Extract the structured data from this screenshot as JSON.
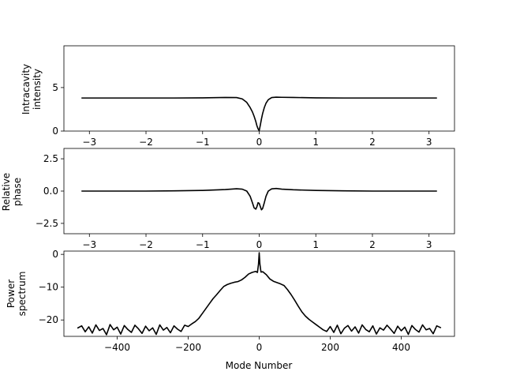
{
  "colors": {
    "line": "#000000",
    "background": "#ffffff"
  },
  "chart_data": [
    {
      "type": "line",
      "ylabel_lines": [
        "Intracavity",
        "intensity"
      ],
      "xlabel": "",
      "xlim": [
        -3.45,
        3.45
      ],
      "ylim": [
        0,
        9.8
      ],
      "xticks": [
        -3,
        -2,
        -1,
        0,
        1,
        2,
        3
      ],
      "xtick_labels": [
        "−3",
        "−2",
        "−1",
        "0",
        "1",
        "2",
        "3"
      ],
      "yticks": [
        0,
        5
      ],
      "ytick_labels": [
        "0",
        "5"
      ],
      "grid": false,
      "series": [
        {
          "x": [
            -3.14,
            -2.5,
            -2.0,
            -1.5,
            -1.0,
            -0.6,
            -0.4,
            -0.3,
            -0.22,
            -0.16,
            -0.12,
            -0.09,
            -0.06,
            -0.04,
            -0.02,
            0.0,
            0.02,
            0.04,
            0.06,
            0.09,
            0.12,
            0.16,
            0.22,
            0.3,
            0.4,
            0.6,
            1.0,
            1.5,
            2.0,
            2.5,
            3.14
          ],
          "y": [
            3.8,
            3.8,
            3.8,
            3.8,
            3.82,
            3.86,
            3.85,
            3.7,
            3.3,
            2.7,
            2.2,
            1.7,
            1.1,
            0.6,
            0.25,
            0.05,
            0.7,
            1.4,
            2.0,
            2.7,
            3.2,
            3.6,
            3.85,
            3.9,
            3.88,
            3.86,
            3.82,
            3.8,
            3.8,
            3.8,
            3.8
          ]
        }
      ]
    },
    {
      "type": "line",
      "ylabel_lines": [
        "Relative",
        "phase"
      ],
      "xlabel": "",
      "xlim": [
        -3.45,
        3.45
      ],
      "ylim": [
        -3.3,
        3.3
      ],
      "xticks": [
        -3,
        -2,
        -1,
        0,
        1,
        2,
        3
      ],
      "xtick_labels": [
        "−3",
        "−2",
        "−1",
        "0",
        "1",
        "2",
        "3"
      ],
      "yticks": [
        -2.5,
        0.0,
        2.5
      ],
      "ytick_labels": [
        "−2.5",
        "0.0",
        "2.5"
      ],
      "grid": false,
      "series": [
        {
          "x": [
            -3.14,
            -2.5,
            -2.0,
            -1.5,
            -1.0,
            -0.6,
            -0.4,
            -0.3,
            -0.22,
            -0.16,
            -0.12,
            -0.09,
            -0.06,
            -0.04,
            -0.02,
            0.0,
            0.02,
            0.04,
            0.06,
            0.09,
            0.12,
            0.16,
            0.22,
            0.3,
            0.4,
            0.6,
            1.0,
            1.5,
            2.0,
            2.5,
            3.14
          ],
          "y": [
            0.0,
            0.0,
            0.0,
            0.02,
            0.05,
            0.12,
            0.18,
            0.15,
            0.0,
            -0.4,
            -0.9,
            -1.3,
            -1.4,
            -1.2,
            -0.9,
            -0.95,
            -1.2,
            -1.45,
            -1.35,
            -0.9,
            -0.4,
            0.0,
            0.17,
            0.2,
            0.15,
            0.1,
            0.05,
            0.02,
            0.0,
            0.0,
            0.0
          ]
        }
      ]
    },
    {
      "type": "line",
      "ylabel_lines": [
        "Power",
        "spectrum"
      ],
      "xlabel": "Mode Number",
      "xlim": [
        -550,
        550
      ],
      "ylim": [
        -25,
        1
      ],
      "xticks": [
        -400,
        -200,
        0,
        200,
        400
      ],
      "xtick_labels": [
        "−400",
        "−200",
        "0",
        "200",
        "400"
      ],
      "yticks": [
        -20,
        -10,
        0
      ],
      "ytick_labels": [
        "−20",
        "−10",
        "0"
      ],
      "grid": false,
      "series": [
        {
          "x": [
            -512,
            -500,
            -490,
            -480,
            -470,
            -460,
            -450,
            -440,
            -430,
            -420,
            -410,
            -400,
            -390,
            -380,
            -370,
            -360,
            -350,
            -340,
            -330,
            -320,
            -310,
            -300,
            -290,
            -280,
            -270,
            -260,
            -250,
            -240,
            -230,
            -220,
            -210,
            -200,
            -190,
            -180,
            -170,
            -160,
            -150,
            -140,
            -130,
            -120,
            -110,
            -100,
            -90,
            -80,
            -70,
            -60,
            -50,
            -40,
            -30,
            -20,
            -10,
            -5,
            -2,
            0,
            2,
            5,
            10,
            20,
            30,
            40,
            50,
            60,
            70,
            80,
            90,
            100,
            110,
            120,
            130,
            140,
            150,
            160,
            170,
            180,
            190,
            200,
            210,
            220,
            230,
            240,
            250,
            260,
            270,
            280,
            290,
            300,
            310,
            320,
            330,
            340,
            350,
            360,
            370,
            380,
            390,
            400,
            410,
            420,
            430,
            440,
            450,
            460,
            470,
            480,
            490,
            500,
            512
          ],
          "y": [
            -22.5,
            -21.8,
            -23.6,
            -22.1,
            -24.0,
            -21.5,
            -23.2,
            -22.6,
            -24.5,
            -21.4,
            -23.0,
            -22.2,
            -24.3,
            -21.7,
            -22.9,
            -23.8,
            -21.6,
            -22.7,
            -24.1,
            -21.9,
            -23.3,
            -22.4,
            -24.4,
            -21.5,
            -23.1,
            -22.3,
            -23.9,
            -21.8,
            -22.8,
            -23.5,
            -21.6,
            -22.0,
            -21.2,
            -20.5,
            -19.5,
            -18.0,
            -16.5,
            -15.0,
            -13.5,
            -12.3,
            -11.0,
            -9.8,
            -9.2,
            -8.8,
            -8.5,
            -8.3,
            -7.8,
            -7.0,
            -6.0,
            -5.5,
            -5.2,
            -5.5,
            -3.0,
            0.5,
            -3.0,
            -5.4,
            -5.3,
            -6.2,
            -7.5,
            -8.2,
            -8.6,
            -9.0,
            -9.5,
            -10.8,
            -12.3,
            -14.0,
            -15.8,
            -17.5,
            -18.8,
            -19.8,
            -20.6,
            -21.4,
            -22.2,
            -23.0,
            -23.5,
            -22.0,
            -23.8,
            -21.6,
            -24.2,
            -22.5,
            -21.7,
            -23.4,
            -22.1,
            -24.0,
            -21.5,
            -22.9,
            -23.6,
            -21.8,
            -24.3,
            -22.4,
            -23.1,
            -21.6,
            -22.8,
            -24.1,
            -21.9,
            -23.3,
            -22.2,
            -24.4,
            -21.7,
            -22.9,
            -23.7,
            -21.5,
            -23.0,
            -22.6,
            -24.2,
            -21.8,
            -22.4
          ]
        }
      ]
    }
  ]
}
